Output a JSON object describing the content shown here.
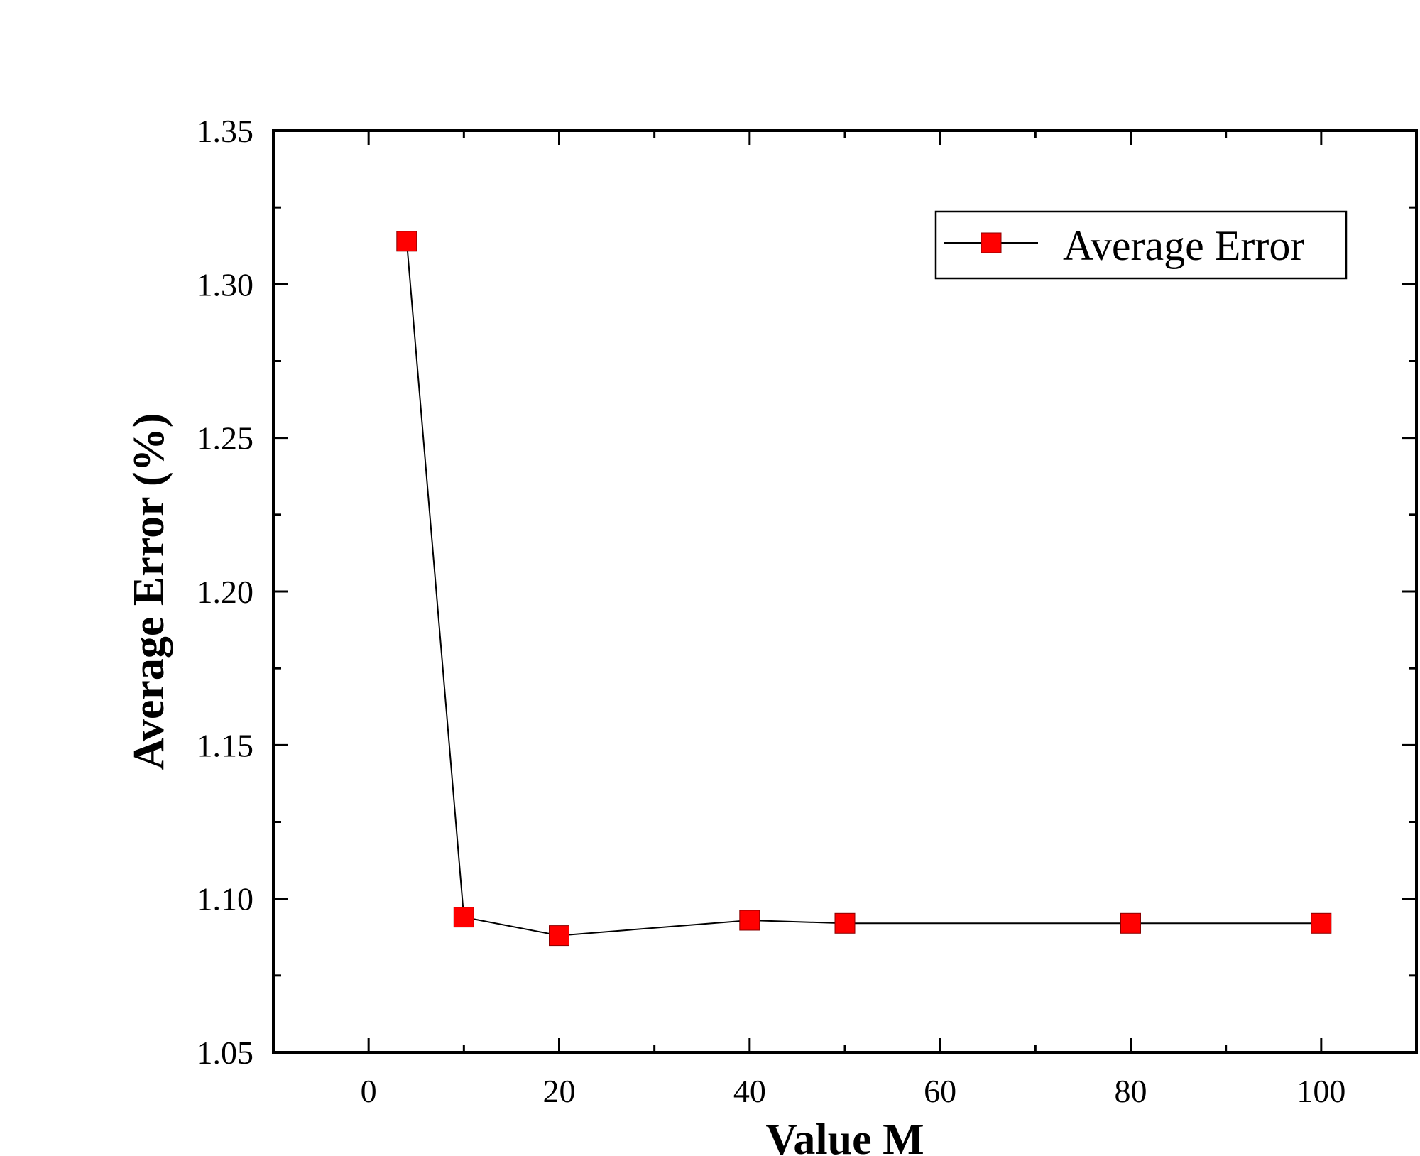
{
  "chart_data": {
    "type": "line",
    "title": "",
    "xlabel": "Value M",
    "ylabel": "Average Error (%)",
    "xlim": [
      -10,
      110
    ],
    "ylim": [
      1.05,
      1.35
    ],
    "x_ticks": [
      0,
      20,
      40,
      60,
      80,
      100
    ],
    "x_tick_labels": [
      "0",
      "20",
      "40",
      "60",
      "80",
      "100"
    ],
    "y_ticks": [
      1.05,
      1.1,
      1.15,
      1.2,
      1.25,
      1.3,
      1.35
    ],
    "y_tick_labels": [
      "1.05",
      "1.10",
      "1.15",
      "1.20",
      "1.25",
      "1.30",
      "1.35"
    ],
    "grid": false,
    "legend_position": "top-right",
    "series": [
      {
        "name": "Average Error",
        "marker": "square",
        "marker_color": "#ff0000",
        "line_color": "#000000",
        "x": [
          4,
          10,
          20,
          40,
          50,
          80,
          100
        ],
        "values": [
          1.314,
          1.094,
          1.088,
          1.093,
          1.092,
          1.092,
          1.092
        ]
      }
    ]
  }
}
